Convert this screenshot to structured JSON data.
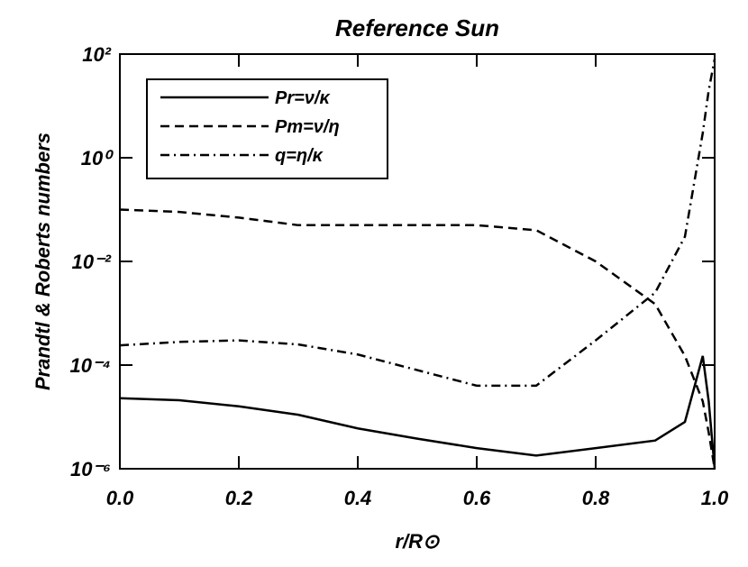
{
  "chart_data": {
    "type": "line",
    "title": "Reference Sun",
    "xlabel": "r/R⊙",
    "ylabel": "Prandtl & Roberts numbers",
    "x": [
      0,
      0.1,
      0.2,
      0.3,
      0.4,
      0.5,
      0.6,
      0.7,
      0.8,
      0.9,
      0.95,
      0.98,
      0.99,
      1.0
    ],
    "series": [
      {
        "name": "Pr=ν/κ",
        "color": "#000000",
        "dash": "solid",
        "values": [
          2.3e-05,
          2.1e-05,
          1.6e-05,
          1.1e-05,
          6e-06,
          3.8e-06,
          2.5e-06,
          1.8e-06,
          2.5e-06,
          3.5e-06,
          8e-06,
          0.00015,
          2e-05,
          1e-06
        ]
      },
      {
        "name": "Pm=ν/η",
        "color": "#000000",
        "dash": "dashed",
        "values": [
          0.1,
          0.09,
          0.07,
          0.05,
          0.05,
          0.05,
          0.05,
          0.04,
          0.01,
          0.0015,
          0.00015,
          2e-05,
          5e-06,
          1e-06
        ]
      },
      {
        "name": "q=η/κ",
        "color": "#000000",
        "dash": "dashdot",
        "values": [
          0.00024,
          0.00028,
          0.0003,
          0.00025,
          0.00016,
          8e-05,
          4e-05,
          4e-05,
          0.0003,
          0.0025,
          0.03,
          3,
          20,
          80
        ]
      }
    ],
    "xlim": [
      0,
      1
    ],
    "ylim": [
      1e-06,
      100
    ],
    "ylog": true,
    "xticks": [
      {
        "value": 0,
        "label": "0.0"
      },
      0.2,
      0.4,
      0.6,
      0.8,
      {
        "value": 1,
        "label": "1.0"
      }
    ],
    "yticks": [
      {
        "value": 1e-06,
        "label": "10⁻⁶"
      },
      {
        "value": 0.0001,
        "label": "10⁻⁴"
      },
      {
        "value": 0.01,
        "label": "10⁻²"
      },
      {
        "value": 1,
        "label": "10⁰"
      },
      {
        "value": 100,
        "label": "10²"
      }
    ],
    "legend": "upper left"
  }
}
